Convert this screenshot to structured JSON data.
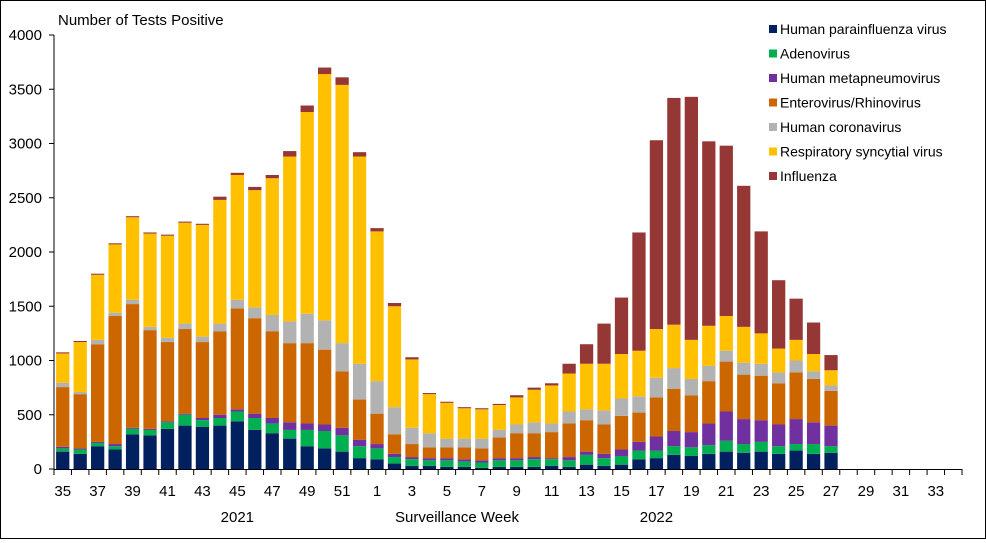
{
  "chart_data": {
    "type": "bar",
    "stacked": true,
    "title": "",
    "ylabel": "Number of Tests Positive",
    "xlabel": "Surveillance Week",
    "year_labels": [
      {
        "label": "2021",
        "near_week_index": 10
      },
      {
        "label": "2022",
        "near_week_index": 34
      }
    ],
    "ylim": [
      0,
      4000
    ],
    "yticks": [
      0,
      500,
      1000,
      1500,
      2000,
      2500,
      3000,
      3500,
      4000
    ],
    "grid": false,
    "legend_position": "top-right",
    "weeks": [
      "35",
      "36",
      "37",
      "38",
      "39",
      "40",
      "41",
      "42",
      "43",
      "44",
      "45",
      "46",
      "47",
      "48",
      "49",
      "50",
      "51",
      "52",
      "1",
      "2",
      "3",
      "4",
      "5",
      "6",
      "7",
      "8",
      "9",
      "10",
      "11",
      "12",
      "13",
      "14",
      "15",
      "16",
      "17",
      "18",
      "19",
      "20",
      "21",
      "22",
      "23",
      "24",
      "25",
      "26",
      "27",
      "28",
      "29",
      "30",
      "31",
      "32",
      "33",
      "34"
    ],
    "xtick_labels": [
      "35",
      "37",
      "39",
      "41",
      "43",
      "45",
      "47",
      "49",
      "51",
      "1",
      "3",
      "5",
      "7",
      "9",
      "11",
      "13",
      "15",
      "17",
      "19",
      "21",
      "23",
      "25",
      "27",
      "29",
      "31",
      "33"
    ],
    "series": [
      {
        "name": "Human parainfluenza virus",
        "color": "#002060",
        "values": [
          160,
          140,
          210,
          180,
          320,
          310,
          370,
          400,
          390,
          400,
          440,
          360,
          330,
          280,
          210,
          190,
          160,
          100,
          90,
          50,
          30,
          30,
          20,
          20,
          10,
          20,
          20,
          20,
          30,
          20,
          40,
          30,
          40,
          90,
          100,
          130,
          120,
          140,
          160,
          150,
          160,
          140,
          170,
          140,
          150
        ]
      },
      {
        "name": "Adenovirus",
        "color": "#00B050",
        "values": [
          30,
          40,
          30,
          30,
          50,
          50,
          60,
          100,
          60,
          70,
          90,
          110,
          90,
          80,
          150,
          160,
          150,
          110,
          100,
          60,
          60,
          50,
          60,
          50,
          50,
          60,
          60,
          70,
          60,
          60,
          90,
          70,
          80,
          80,
          70,
          80,
          80,
          80,
          100,
          80,
          90,
          70,
          60,
          90,
          60
        ]
      },
      {
        "name": "Human metapneumovirus",
        "color": "#7030A0",
        "values": [
          15,
          10,
          10,
          20,
          10,
          10,
          10,
          10,
          20,
          30,
          20,
          40,
          50,
          70,
          60,
          60,
          70,
          60,
          40,
          30,
          20,
          20,
          20,
          20,
          20,
          20,
          20,
          20,
          10,
          30,
          30,
          40,
          60,
          80,
          130,
          140,
          140,
          200,
          270,
          230,
          200,
          200,
          230,
          200,
          190
        ]
      },
      {
        "name": "Enterovirus/Rhinovirus",
        "color": "#CC6600",
        "values": [
          550,
          500,
          900,
          1180,
          1140,
          910,
          730,
          780,
          700,
          770,
          930,
          880,
          800,
          730,
          740,
          690,
          520,
          370,
          280,
          180,
          120,
          100,
          100,
          110,
          110,
          190,
          230,
          220,
          240,
          310,
          290,
          270,
          310,
          270,
          360,
          390,
          340,
          390,
          460,
          410,
          410,
          380,
          430,
          400,
          320
        ]
      },
      {
        "name": "Human coronavirus",
        "color": "#B2B2B2",
        "values": [
          40,
          20,
          40,
          30,
          40,
          30,
          40,
          50,
          50,
          70,
          80,
          100,
          150,
          200,
          270,
          270,
          260,
          330,
          300,
          250,
          150,
          130,
          80,
          80,
          90,
          70,
          80,
          100,
          80,
          110,
          100,
          130,
          160,
          150,
          180,
          190,
          150,
          140,
          100,
          110,
          110,
          100,
          110,
          70,
          50
        ]
      },
      {
        "name": "Respiratory syncytial virus",
        "color": "#FFC000",
        "values": [
          270,
          460,
          600,
          630,
          760,
          860,
          940,
          930,
          1030,
          1140,
          1150,
          1080,
          1260,
          1520,
          1860,
          2270,
          2380,
          1910,
          1380,
          930,
          630,
          360,
          330,
          280,
          270,
          230,
          250,
          300,
          350,
          350,
          420,
          430,
          410,
          420,
          450,
          400,
          360,
          370,
          320,
          330,
          280,
          220,
          190,
          160,
          140
        ]
      },
      {
        "name": "Influenza",
        "color": "#953735",
        "values": [
          10,
          10,
          10,
          10,
          10,
          10,
          10,
          10,
          10,
          30,
          20,
          30,
          30,
          50,
          60,
          60,
          70,
          40,
          30,
          30,
          20,
          10,
          10,
          10,
          10,
          10,
          20,
          20,
          20,
          90,
          180,
          370,
          520,
          1090,
          1740,
          2090,
          2240,
          1700,
          1570,
          1300,
          940,
          630,
          380,
          290,
          140
        ]
      }
    ]
  }
}
